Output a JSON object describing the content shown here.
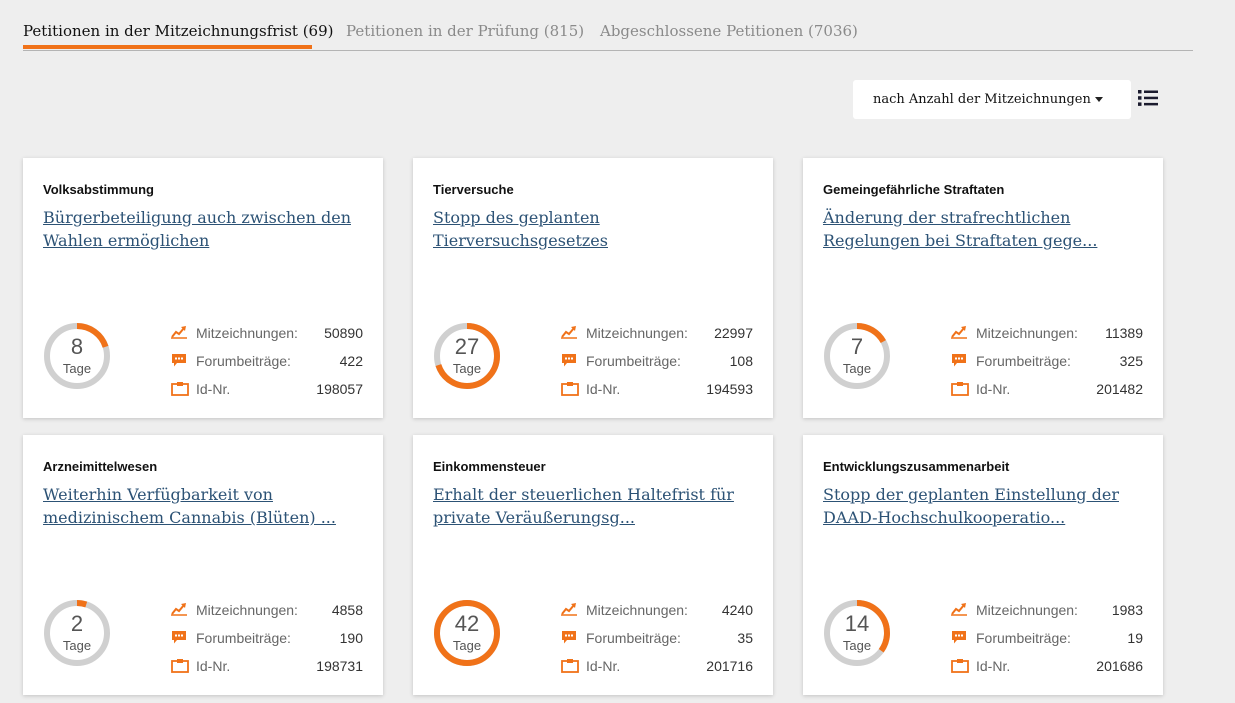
{
  "tabs": [
    {
      "label": "Petitionen in der Mitzeichnungsfrist (69)"
    },
    {
      "label": "Petitionen in der Prüfung (815)"
    },
    {
      "label": "Abgeschlossene Petitionen (7036)"
    }
  ],
  "sort": {
    "label": "nach Anzahl der Mitzeichnungen"
  },
  "stat_labels": {
    "signatures": "Mitzeichnungen:",
    "forum": "Forumbeiträge:",
    "id": "Id-Nr."
  },
  "days_unit": "Tage",
  "colors": {
    "accent": "#f07219",
    "ring_track": "#d0d0d0",
    "link": "#2c5275"
  },
  "icons": [
    "list-view-icon",
    "trend-chart-icon",
    "speech-bubble-icon",
    "id-card-icon",
    "dropdown-caret-icon"
  ],
  "petitions": [
    {
      "category": "Volksabstimmung",
      "title": "Bürgerbeteiligung auch zwischen den Wahlen ermöglichen",
      "days": "8",
      "progress": 0.2,
      "signatures": "50890",
      "forum": "422",
      "id": "198057"
    },
    {
      "category": "Tierversuche",
      "title": "Stopp des geplanten Tierversuchsgesetzes",
      "days": "27",
      "progress": 0.7,
      "signatures": "22997",
      "forum": "108",
      "id": "194593"
    },
    {
      "category": "Gemeingefährliche Straftaten",
      "title": "Änderung der strafrechtlichen Regelungen bei Straftaten gege...",
      "days": "7",
      "progress": 0.17,
      "signatures": "11389",
      "forum": "325",
      "id": "201482"
    },
    {
      "category": "Arzneimittelwesen",
      "title": "Weiterhin Verfügbarkeit von medizinischem Cannabis (Blüten) ...",
      "days": "2",
      "progress": 0.05,
      "signatures": "4858",
      "forum": "190",
      "id": "198731"
    },
    {
      "category": "Einkommensteuer",
      "title": "Erhalt der steuerlichen Haltefrist für private Veräußerungsg...",
      "days": "42",
      "progress": 1.0,
      "signatures": "4240",
      "forum": "35",
      "id": "201716"
    },
    {
      "category": "Entwicklungszusammenarbeit",
      "title": "Stopp der geplanten Einstellung der DAAD-Hochschulkooperatio...",
      "days": "14",
      "progress": 0.35,
      "signatures": "1983",
      "forum": "19",
      "id": "201686"
    }
  ]
}
